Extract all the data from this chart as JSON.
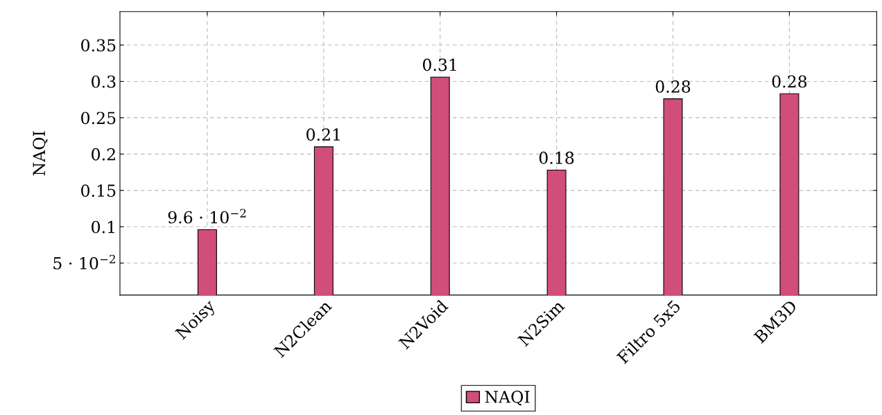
{
  "chart_data": {
    "type": "bar",
    "ylabel": "NAQI",
    "categories": [
      "Noisy",
      "N2Clean",
      "N2Void",
      "N2Sim",
      "Filtro 5x5",
      "BM3D"
    ],
    "series": [
      {
        "name": "NAQI",
        "color": "#d14d7a",
        "values": [
          0.096,
          0.21,
          0.306,
          0.178,
          0.276,
          0.283
        ],
        "value_labels": [
          "9.6 · 10$^{−2}$",
          "0.21",
          "0.31",
          "0.18",
          "0.28",
          "0.28"
        ]
      }
    ],
    "ylim": [
      0.006,
      0.396
    ],
    "yticks": [
      {
        "value": 0.05,
        "label": "5 · 10$^{−2}$"
      },
      0.1,
      0.15,
      0.2,
      0.25,
      0.3,
      0.35
    ],
    "grid": true,
    "legend": "bottom"
  }
}
